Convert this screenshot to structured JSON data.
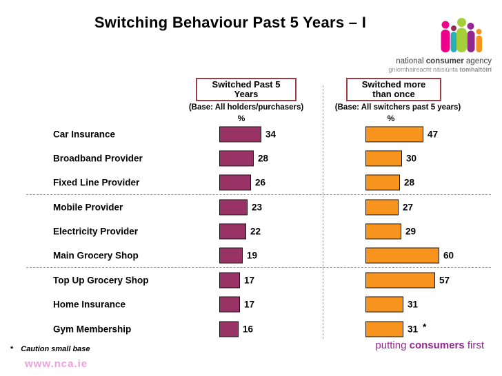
{
  "title": "Switching Behaviour Past 5 Years – I",
  "logo": {
    "name_regular1": "national ",
    "name_bold": "consumer",
    "name_regular2": " agency",
    "sub_regular": "gníomhaireacht náisiúnta ",
    "sub_bold": "tomhaltóirí"
  },
  "columns": [
    {
      "header_line1": "Switched Past 5",
      "header_line2": "Years",
      "base": "(Base: All holders/purchasers)",
      "unit": "%"
    },
    {
      "header_line1": "Switched more",
      "header_line2": "than once",
      "base": "(Base: All switchers past 5 years)",
      "unit": "%"
    }
  ],
  "chart_data": {
    "type": "bar",
    "orientation": "horizontal",
    "title": "Switching Behaviour Past 5 Years – I",
    "categories": [
      "Car Insurance",
      "Broadband Provider",
      "Fixed Line Provider",
      "Mobile Provider",
      "Electricity Provider",
      "Main Grocery Shop",
      "Top Up Grocery Shop",
      "Home Insurance",
      "Gym Membership"
    ],
    "series": [
      {
        "name": "Switched Past 5 Years",
        "base": "All holders/purchasers",
        "unit": "%",
        "color": "#993366",
        "values": [
          34,
          28,
          26,
          23,
          22,
          19,
          17,
          17,
          16
        ],
        "notes": [
          "",
          "",
          "",
          "",
          "",
          "",
          "",
          "",
          ""
        ]
      },
      {
        "name": "Switched more than once",
        "base": "All switchers past 5 years",
        "unit": "%",
        "color": "#F7941E",
        "values": [
          47,
          30,
          28,
          27,
          29,
          60,
          57,
          31,
          31
        ],
        "notes": [
          "",
          "",
          "",
          "",
          "",
          "",
          "",
          "",
          "*"
        ]
      }
    ],
    "group_separators_after": [
      2,
      5
    ],
    "xlim": [
      0,
      65
    ],
    "value_labels": true,
    "grid": false,
    "legend_position": "none"
  },
  "footnote": {
    "marker": "*",
    "text": "Caution small base"
  },
  "website": "www.nca.ie",
  "tagline": {
    "pre": "putting ",
    "bold": "consumers",
    "post": " first"
  },
  "colors": {
    "bar_left": "#993366",
    "bar_right": "#F7941E",
    "header_box_border": "#A03845",
    "dashed_line": "#999999",
    "website": "#EE9FE0",
    "tagline": "#92278F",
    "logo_pink": "#EC008C",
    "logo_teal": "#29AFB5",
    "logo_maroon": "#9C2656",
    "logo_green": "#A6CE39",
    "logo_purple": "#92278F",
    "logo_orange": "#F7941E"
  }
}
